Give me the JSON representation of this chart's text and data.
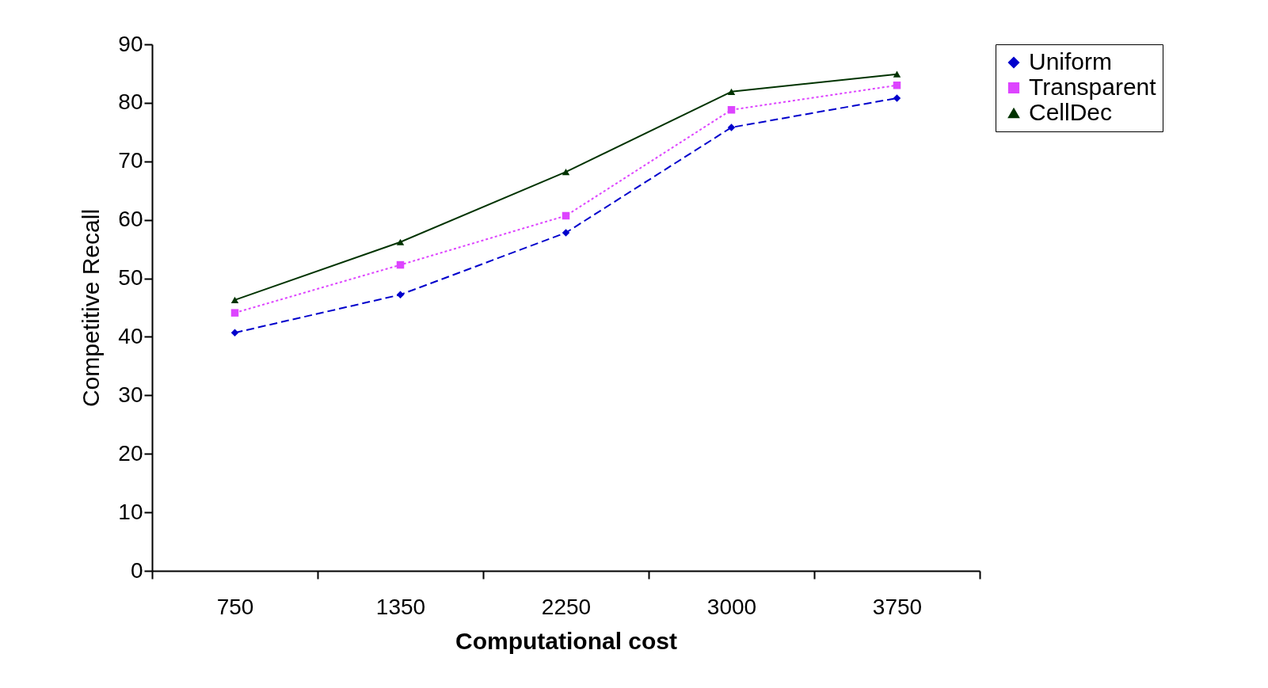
{
  "chart_data": {
    "type": "line",
    "xlabel": "Computational cost",
    "ylabel": "Competitive Recall",
    "categories": [
      "750",
      "1350",
      "2250",
      "3000",
      "3750"
    ],
    "series": [
      {
        "name": "Uniform",
        "color": "#0000cc",
        "marker": "diamond",
        "line_style": "dashed",
        "values": [
          40.7,
          47.2,
          57.8,
          75.8,
          80.8
        ]
      },
      {
        "name": "Transparent",
        "color": "#dd44ff",
        "marker": "square",
        "line_style": "dotted",
        "values": [
          44.1,
          52.3,
          60.7,
          78.8,
          83.0
        ]
      },
      {
        "name": "CellDec",
        "color": "#003300",
        "marker": "triangle",
        "line_style": "solid",
        "values": [
          46.3,
          56.2,
          68.2,
          81.9,
          84.9
        ]
      }
    ],
    "ylim": [
      0,
      90
    ],
    "yticks": [
      0,
      10,
      20,
      30,
      40,
      50,
      60,
      70,
      80,
      90
    ],
    "grid": false,
    "legend": "right"
  }
}
